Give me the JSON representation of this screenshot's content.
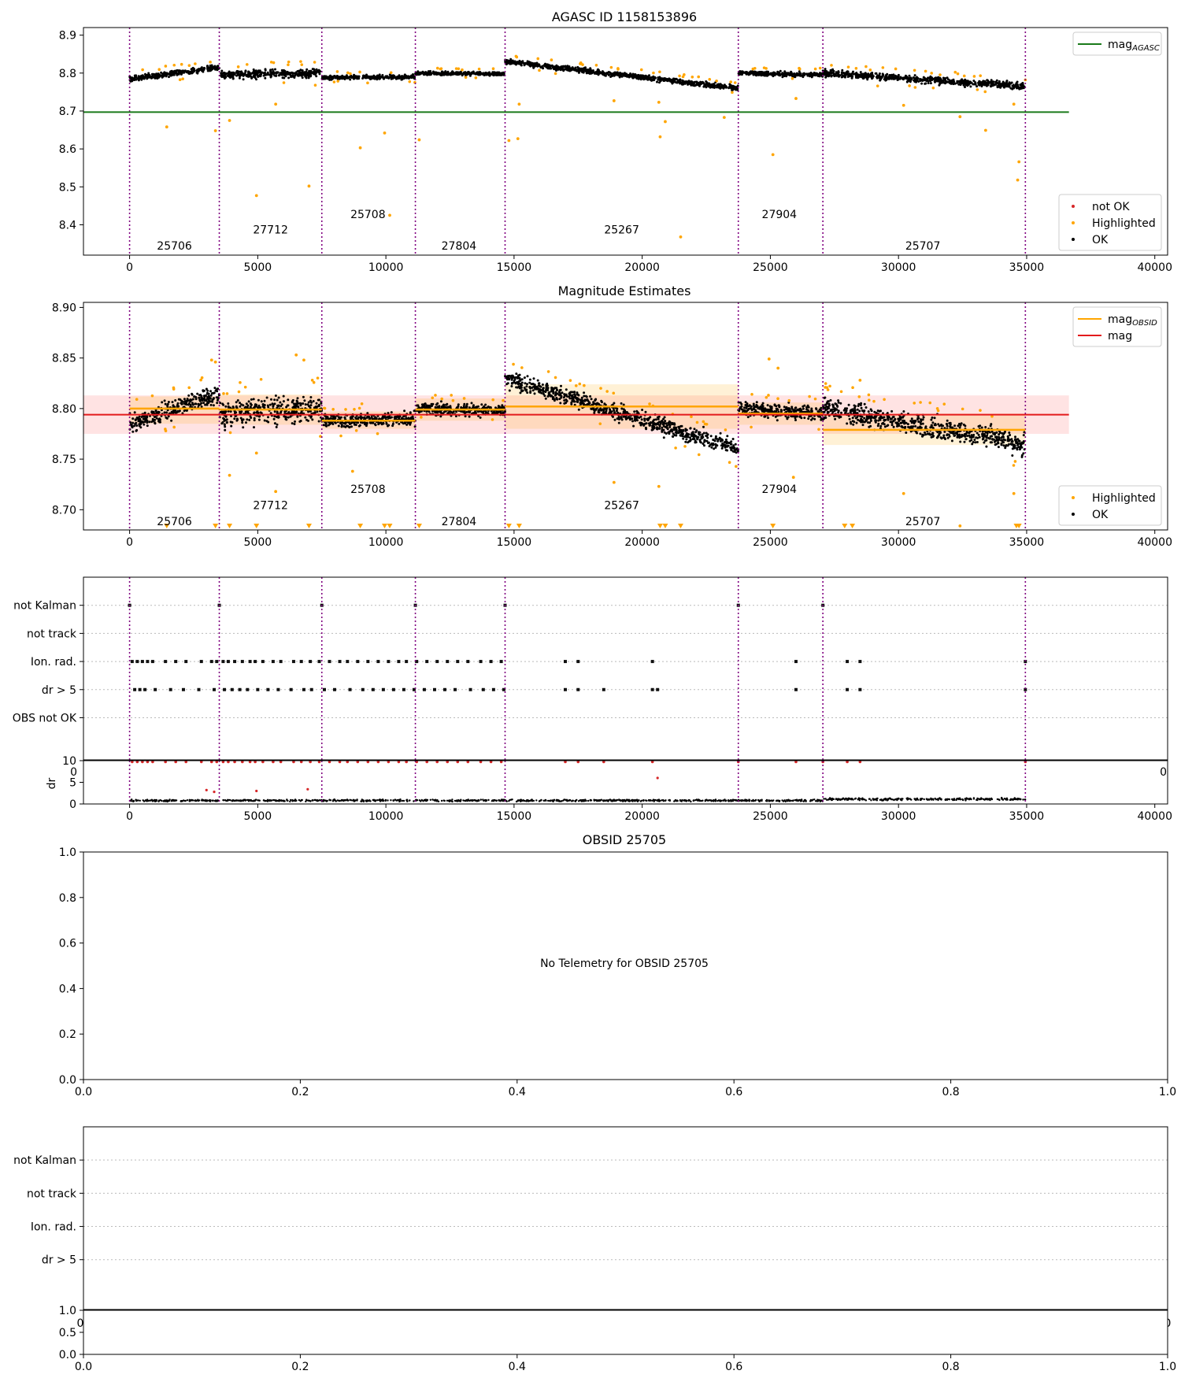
{
  "chart_data": [
    {
      "type": "scatter",
      "title": "AGASC ID 1158153896",
      "xlim": [
        -1800,
        40500
      ],
      "ylim": [
        8.32,
        8.92
      ],
      "xticks": [
        0,
        5000,
        10000,
        15000,
        20000,
        25000,
        30000,
        35000,
        40000
      ],
      "yticks": [
        8.4,
        8.5,
        8.6,
        8.7,
        8.8,
        8.9
      ],
      "ytick_decimals": 1,
      "grid": false,
      "obsid_boundaries": [
        0,
        3500,
        7500,
        11150,
        14650,
        23750,
        27050,
        34950
      ],
      "obsid_labels": [
        {
          "label": "25706",
          "x": 1750,
          "y": 8.345
        },
        {
          "label": "27712",
          "x": 5500,
          "y": 8.387
        },
        {
          "label": "25708",
          "x": 9300,
          "y": 8.428
        },
        {
          "label": "27804",
          "x": 12850,
          "y": 8.345
        },
        {
          "label": "25267",
          "x": 19200,
          "y": 8.387
        },
        {
          "label": "27904",
          "x": 25350,
          "y": 8.428
        },
        {
          "label": "25707",
          "x": 30950,
          "y": 8.345
        }
      ],
      "reference_lines": [
        {
          "name": "mag_AGASC",
          "legend_main": "mag",
          "legend_sub": "AGASC",
          "color": "#1a7a1a",
          "y": 8.697,
          "x_range": [
            -1800,
            36650
          ]
        }
      ],
      "segments": [
        {
          "x": [
            0,
            3500
          ],
          "y0": 8.785,
          "y1": 8.815,
          "spread": 0.011
        },
        {
          "x": [
            3500,
            7500
          ],
          "y0": 8.795,
          "y1": 8.8,
          "spread": 0.016
        },
        {
          "x": [
            7500,
            11150
          ],
          "y0": 8.788,
          "y1": 8.79,
          "spread": 0.008
        },
        {
          "x": [
            11150,
            14650
          ],
          "y0": 8.8,
          "y1": 8.798,
          "spread": 0.007
        },
        {
          "x": [
            14650,
            23750
          ],
          "y0": 8.83,
          "y1": 8.76,
          "spread": 0.01
        },
        {
          "x": [
            23750,
            27050
          ],
          "y0": 8.8,
          "y1": 8.795,
          "spread": 0.009
        },
        {
          "x": [
            27050,
            34950
          ],
          "y0": 8.8,
          "y1": 8.765,
          "spread": 0.013
        }
      ],
      "highlighted_points": [
        [
          1450,
          8.658
        ],
        [
          3350,
          8.648
        ],
        [
          3900,
          8.675
        ],
        [
          4950,
          8.477
        ],
        [
          5700,
          8.718
        ],
        [
          7000,
          8.502
        ],
        [
          9000,
          8.603
        ],
        [
          9950,
          8.642
        ],
        [
          10150,
          8.425
        ],
        [
          11300,
          8.624
        ],
        [
          14800,
          8.622
        ],
        [
          15150,
          8.627
        ],
        [
          15200,
          8.718
        ],
        [
          18900,
          8.727
        ],
        [
          20650,
          8.723
        ],
        [
          20700,
          8.632
        ],
        [
          20900,
          8.672
        ],
        [
          21500,
          8.368
        ],
        [
          23200,
          8.683
        ],
        [
          25100,
          8.585
        ],
        [
          26000,
          8.733
        ],
        [
          30200,
          8.715
        ],
        [
          32400,
          8.685
        ],
        [
          33400,
          8.649
        ],
        [
          34500,
          8.718
        ],
        [
          34650,
          8.518
        ],
        [
          34700,
          8.566
        ]
      ],
      "legends": [
        {
          "placement": "top-right",
          "entries": [
            {
              "label": "mag",
              "sub": "AGASC",
              "kind": "line",
              "color": "#1a7a1a"
            }
          ]
        },
        {
          "placement": "lower-right",
          "entries": [
            {
              "label": "not OK",
              "kind": "dot",
              "color": "#d62728"
            },
            {
              "label": "Highlighted",
              "kind": "dot",
              "color": "#ffa500"
            },
            {
              "label": "OK",
              "kind": "dot",
              "color": "#000000"
            }
          ]
        }
      ]
    },
    {
      "type": "scatter",
      "title": "Magnitude Estimates",
      "xlim": [
        -1800,
        40500
      ],
      "ylim": [
        8.68,
        8.905
      ],
      "xticks": [
        0,
        5000,
        10000,
        15000,
        20000,
        25000,
        30000,
        35000,
        40000
      ],
      "yticks": [
        8.7,
        8.75,
        8.8,
        8.85,
        8.9
      ],
      "ytick_decimals": 2,
      "grid": false,
      "obsid_boundaries": [
        0,
        3500,
        7500,
        11150,
        14650,
        23750,
        27050,
        34950
      ],
      "obsid_labels": [
        {
          "label": "25706",
          "x": 1750,
          "y": 8.6885
        },
        {
          "label": "27712",
          "x": 5500,
          "y": 8.7045
        },
        {
          "label": "25708",
          "x": 9300,
          "y": 8.7205
        },
        {
          "label": "27804",
          "x": 12850,
          "y": 8.6885
        },
        {
          "label": "25267",
          "x": 19200,
          "y": 8.7045
        },
        {
          "label": "27904",
          "x": 25350,
          "y": 8.7205
        },
        {
          "label": "25707",
          "x": 30950,
          "y": 8.6885
        }
      ],
      "reference_lines": [
        {
          "name": "mag",
          "legend_main": "mag",
          "legend_sub": "",
          "color": "#e31a1c",
          "y": 8.794,
          "x_range": [
            -1800,
            36650
          ],
          "band": [
            8.775,
            8.813
          ]
        }
      ],
      "obsid_means": [
        {
          "x": [
            0,
            3500
          ],
          "mean": 8.8,
          "band": [
            8.785,
            8.812
          ]
        },
        {
          "x": [
            3500,
            7500
          ],
          "mean": 8.799,
          "band": [
            8.784,
            8.814
          ]
        },
        {
          "x": [
            7500,
            11150
          ],
          "mean": 8.788,
          "band": [
            8.78,
            8.797
          ]
        },
        {
          "x": [
            11150,
            14650
          ],
          "mean": 8.799,
          "band": [
            8.788,
            8.81
          ]
        },
        {
          "x": [
            14650,
            23750
          ],
          "mean": 8.802,
          "band": [
            8.78,
            8.824
          ]
        },
        {
          "x": [
            23750,
            27050
          ],
          "mean": 8.795,
          "band": [
            8.784,
            8.806
          ]
        },
        {
          "x": [
            27050,
            34950
          ],
          "mean": 8.779,
          "band": [
            8.764,
            8.795
          ]
        }
      ],
      "segments": [
        {
          "x": [
            0,
            3500
          ],
          "y0": 8.785,
          "y1": 8.815,
          "spread": 0.011
        },
        {
          "x": [
            3500,
            7500
          ],
          "y0": 8.795,
          "y1": 8.8,
          "spread": 0.016
        },
        {
          "x": [
            7500,
            11150
          ],
          "y0": 8.788,
          "y1": 8.79,
          "spread": 0.008
        },
        {
          "x": [
            11150,
            14650
          ],
          "y0": 8.8,
          "y1": 8.798,
          "spread": 0.007
        },
        {
          "x": [
            14650,
            23750
          ],
          "y0": 8.83,
          "y1": 8.76,
          "spread": 0.01
        },
        {
          "x": [
            23750,
            27050
          ],
          "y0": 8.8,
          "y1": 8.795,
          "spread": 0.009
        },
        {
          "x": [
            27050,
            34950
          ],
          "y0": 8.8,
          "y1": 8.765,
          "spread": 0.013
        }
      ],
      "highlighted_points": [
        [
          3200,
          8.848
        ],
        [
          3350,
          8.846
        ],
        [
          6500,
          8.853
        ],
        [
          6800,
          8.848
        ],
        [
          24950,
          8.849
        ],
        [
          25300,
          8.84
        ],
        [
          28500,
          8.828
        ],
        [
          3900,
          8.734
        ],
        [
          4950,
          8.756
        ],
        [
          5700,
          8.718
        ],
        [
          8700,
          8.738
        ],
        [
          18900,
          8.727
        ],
        [
          20650,
          8.723
        ],
        [
          25900,
          8.732
        ],
        [
          30200,
          8.716
        ],
        [
          32400,
          8.684
        ],
        [
          34500,
          8.716
        ]
      ],
      "below_axis_markers": [
        1450,
        3350,
        3900,
        4950,
        7000,
        9000,
        9950,
        10150,
        11300,
        14800,
        15200,
        20700,
        20900,
        21500,
        25100,
        27900,
        28200,
        34600,
        34700
      ],
      "legends": [
        {
          "placement": "top-right",
          "entries": [
            {
              "label": "mag",
              "sub": "OBSID",
              "kind": "line",
              "color": "#ffa500"
            },
            {
              "label": "mag",
              "sub": "",
              "kind": "line",
              "color": "#e31a1c"
            }
          ]
        },
        {
          "placement": "lower-right",
          "entries": [
            {
              "label": "Highlighted",
              "kind": "dot",
              "color": "#ffa500"
            },
            {
              "label": "OK",
              "kind": "dot",
              "color": "#000000"
            }
          ]
        }
      ]
    },
    {
      "type": "scatter",
      "title": "",
      "xlim": [
        -1800,
        40500
      ],
      "categories": [
        "not Kalman",
        "not track",
        "Ion. rad.",
        "dr > 5",
        "OBS not OK"
      ],
      "obsid_boundaries": [
        0,
        3500,
        7500,
        11150,
        14650,
        23750,
        27050,
        34950
      ],
      "flag_points": {
        "not Kalman": [
          0,
          3500,
          7500,
          11150,
          14650,
          23750,
          27050
        ],
        "not track": [],
        "Ion. rad.": [
          100,
          300,
          500,
          700,
          900,
          1400,
          1800,
          2200,
          2800,
          3200,
          3400,
          3650,
          3850,
          4100,
          4400,
          4700,
          4900,
          5200,
          5600,
          5900,
          6400,
          6700,
          7050,
          7400,
          7800,
          8200,
          8500,
          8900,
          9300,
          9700,
          10100,
          10500,
          10800,
          11200,
          11600,
          12000,
          12400,
          12800,
          13200,
          13700,
          14100,
          14500,
          17000,
          17500,
          20400,
          26000,
          28000,
          28500,
          34950
        ],
        "dr > 5": [
          200,
          400,
          600,
          1000,
          1600,
          2100,
          2700,
          3300,
          3700,
          4000,
          4300,
          4600,
          5000,
          5400,
          5800,
          6300,
          6800,
          7100,
          7600,
          8000,
          8600,
          9100,
          9500,
          9900,
          10300,
          10700,
          11100,
          11500,
          11900,
          12300,
          12700,
          13300,
          13800,
          14200,
          14600,
          17000,
          17500,
          18500,
          20400,
          20600,
          26000,
          28000,
          28500,
          34950
        ],
        "OBS not OK": []
      }
    },
    {
      "type": "scatter",
      "title": "",
      "xlim": [
        -1800,
        40500
      ],
      "ylabel": "dr",
      "ylim": [
        0,
        10
      ],
      "xticks": [
        0,
        5000,
        10000,
        15000,
        20000,
        25000,
        30000,
        35000,
        40000
      ],
      "yticks": [
        0,
        5,
        10
      ],
      "obsid_boundaries": [
        0,
        3500,
        7500,
        11150,
        14650,
        23750,
        27050,
        34950
      ],
      "baseline": [
        {
          "x": [
            0,
            27050
          ],
          "y": 0.8,
          "spread": 0.3
        },
        {
          "x": [
            27050,
            34950
          ],
          "y": 1.1,
          "spread": 0.4
        }
      ],
      "clipped_points": [
        100,
        300,
        500,
        700,
        900,
        1400,
        1800,
        2200,
        2800,
        3200,
        3400,
        3650,
        3850,
        4100,
        4400,
        4700,
        4900,
        5200,
        5600,
        5900,
        6400,
        6700,
        7050,
        7400,
        7800,
        8200,
        8500,
        8900,
        9300,
        9700,
        10100,
        10500,
        10800,
        11200,
        11600,
        12000,
        12400,
        12800,
        13200,
        13700,
        14100,
        14500,
        17000,
        17500,
        18500,
        20400,
        23750,
        26000,
        27050,
        28000,
        28500,
        34950
      ],
      "outliers": [
        [
          3000,
          3.2
        ],
        [
          3300,
          2.8
        ],
        [
          4950,
          3.0
        ],
        [
          6950,
          3.4
        ],
        [
          20600,
          6.0
        ]
      ],
      "tick_labels_overlapped": {
        "left": "0",
        "right": "0"
      }
    },
    {
      "type": "scatter",
      "title": "OBSID 25705",
      "xlim": [
        0,
        1
      ],
      "ylim": [
        0,
        1
      ],
      "xticks": [
        0.0,
        0.2,
        0.4,
        0.6,
        0.8,
        1.0
      ],
      "yticks": [
        0.0,
        0.2,
        0.4,
        0.6,
        0.8,
        1.0
      ],
      "annotation": "No Telemetry for OBSID 25705"
    },
    {
      "type": "scatter",
      "title": "",
      "categories": [
        "not Kalman",
        "not track",
        "Ion. rad.",
        "dr > 5"
      ]
    },
    {
      "type": "scatter",
      "title": "",
      "xlim": [
        0,
        1
      ],
      "ylim": [
        0,
        1
      ],
      "xticks": [
        0.0,
        0.2,
        0.4,
        0.6,
        0.8,
        1.0
      ],
      "yticks": [
        0.0,
        0.5,
        1.0
      ],
      "tick_labels_overlapped": {
        "left": "0",
        "right": "0"
      }
    }
  ]
}
